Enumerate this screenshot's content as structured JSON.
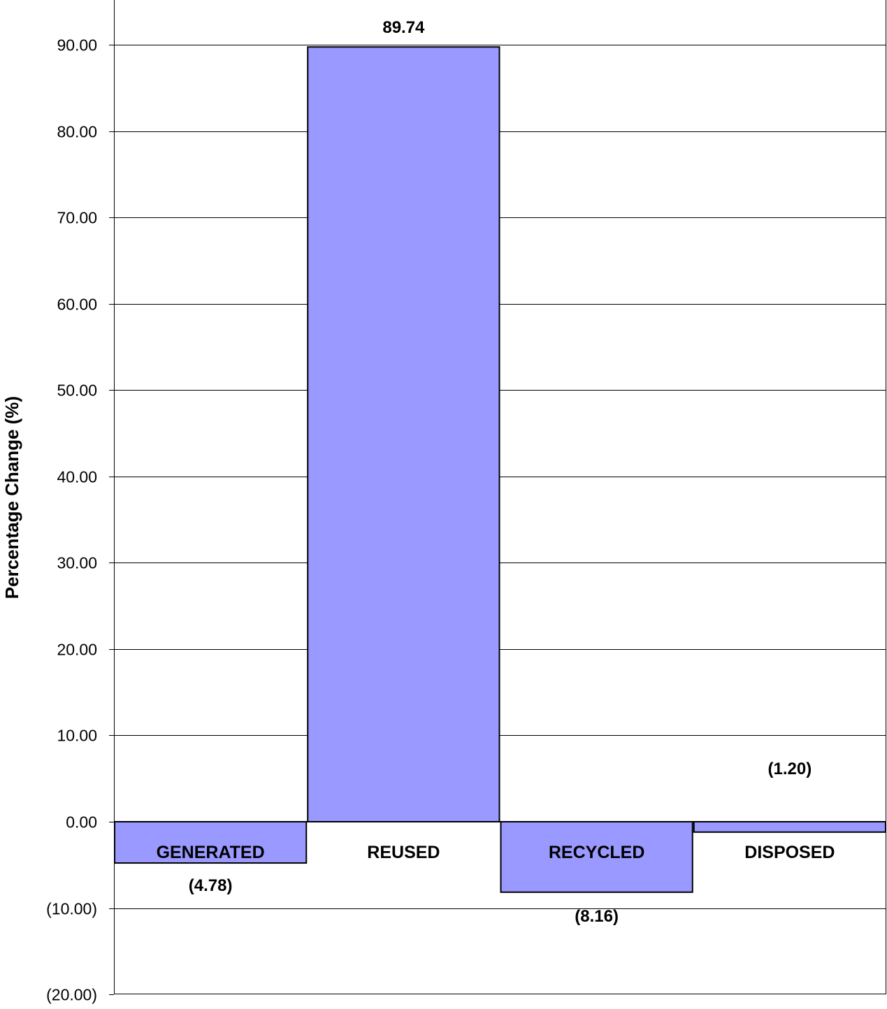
{
  "chart_data": {
    "type": "bar",
    "title": "",
    "xlabel": "",
    "ylabel": "Percentage Change (%)",
    "ylim": [
      -20,
      90
    ],
    "grid": true,
    "bar_color": "#9999ff",
    "categories": [
      "GENERATED",
      "REUSED",
      "RECYCLED",
      "DISPOSED"
    ],
    "values": [
      -4.78,
      89.74,
      -8.16,
      -1.2
    ],
    "data_labels": [
      "(4.78)",
      "89.74",
      "(8.16)",
      "(1.20)"
    ],
    "y_ticks": [
      90,
      80,
      70,
      60,
      50,
      40,
      30,
      20,
      10,
      0,
      -10,
      -20
    ],
    "y_tick_labels": [
      "90.00",
      "80.00",
      "70.00",
      "60.00",
      "50.00",
      "40.00",
      "30.00",
      "20.00",
      "10.00",
      "0.00",
      "(10.00)",
      "(20.00)"
    ]
  }
}
